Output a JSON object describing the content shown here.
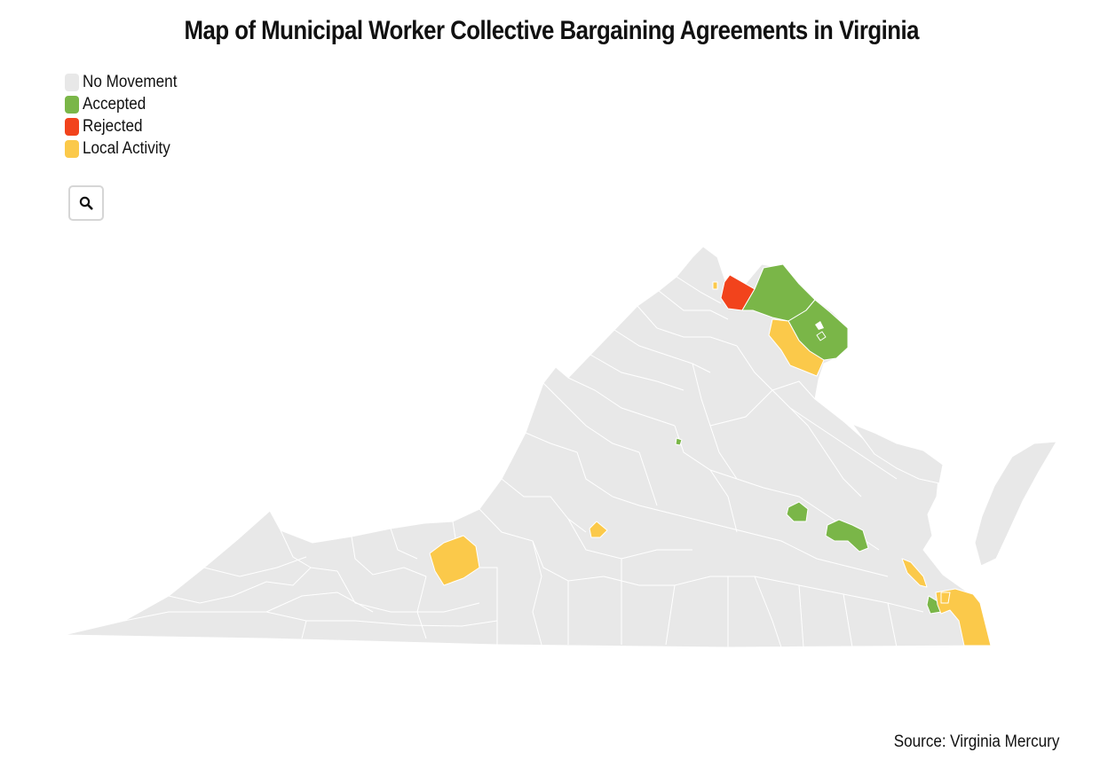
{
  "title": "Map of Municipal Worker Collective Bargaining Agreements in Virginia",
  "legend": {
    "items": [
      {
        "label": "No Movement",
        "color": "#e8e8e8"
      },
      {
        "label": "Accepted",
        "color": "#7ab648"
      },
      {
        "label": "Rejected",
        "color": "#f2431c"
      },
      {
        "label": "Local Activity",
        "color": "#fbc94a"
      }
    ]
  },
  "colors": {
    "no_movement": "#e8e8e8",
    "accepted": "#7ab648",
    "rejected": "#f2431c",
    "local_activity": "#fbc94a",
    "border": "#ffffff"
  },
  "zoom_button": {
    "icon": "search-icon"
  },
  "map": {
    "state": "Virginia",
    "localities": [
      {
        "status": "rejected"
      },
      {
        "status": "accepted"
      },
      {
        "status": "accepted"
      },
      {
        "status": "accepted"
      },
      {
        "status": "accepted"
      },
      {
        "status": "accepted"
      },
      {
        "status": "accepted"
      },
      {
        "status": "accepted"
      },
      {
        "status": "local_activity"
      },
      {
        "status": "local_activity"
      },
      {
        "status": "local_activity"
      },
      {
        "status": "local_activity"
      },
      {
        "status": "local_activity"
      },
      {
        "status": "local_activity"
      },
      {
        "status": "local_activity"
      }
    ]
  },
  "source": {
    "label": "Source:",
    "name": "Virginia Mercury"
  }
}
